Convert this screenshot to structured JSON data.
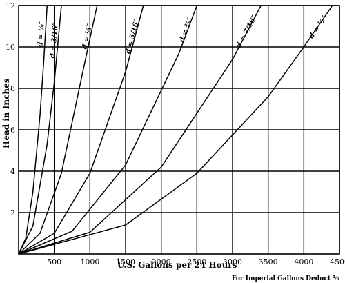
{
  "chart_data": {
    "type": "line",
    "title": "",
    "xlabel": "U.S. Gallons per 24 Hours",
    "ylabel": "Head in Inches",
    "note": "For Imperial Gallons Deduct ⅙",
    "xlim": [
      0,
      4500
    ],
    "ylim": [
      0,
      12
    ],
    "x_ticks": [
      500,
      1000,
      1500,
      2000,
      2500,
      3000,
      3500,
      4000,
      4500
    ],
    "x_tick_labels": [
      "500",
      "1000",
      "1500",
      "2000",
      "2500",
      "3000",
      "3500",
      "4000",
      "4500"
    ],
    "y_ticks": [
      2,
      4,
      6,
      8,
      10,
      12
    ],
    "y_tick_labels": [
      "2",
      "4",
      "6",
      "8",
      "10",
      "12"
    ],
    "grid": true,
    "series": [
      {
        "name": "d = ⅛″",
        "x": [
          0,
          100,
          200,
          300,
          350,
          400
        ],
        "y": [
          0,
          0.75,
          3.0,
          6.7,
          9.2,
          12.0
        ]
      },
      {
        "name": "d = 3/16″",
        "x": [
          0,
          200,
          400,
          500,
          600
        ],
        "y": [
          0,
          1.35,
          5.3,
          8.3,
          12.0
        ]
      },
      {
        "name": "d = ¼″",
        "x": [
          0,
          300,
          600,
          900,
          1100
        ],
        "y": [
          0,
          1.0,
          3.9,
          8.8,
          12.0
        ]
      },
      {
        "name": "d = 5/16″",
        "x": [
          0,
          500,
          1000,
          1500,
          1750
        ],
        "y": [
          0,
          1.0,
          3.9,
          8.8,
          12.0
        ]
      },
      {
        "name": "d = ⅜″",
        "x": [
          0,
          750,
          1500,
          2250,
          2500
        ],
        "y": [
          0,
          1.1,
          4.3,
          9.7,
          12.0
        ]
      },
      {
        "name": "d = 7/16″",
        "x": [
          0,
          1000,
          2000,
          3000,
          3400
        ],
        "y": [
          0,
          1.05,
          4.2,
          9.4,
          12.0
        ]
      },
      {
        "name": "d = ½″",
        "x": [
          0,
          1500,
          2500,
          3500,
          4000,
          4400
        ],
        "y": [
          0,
          1.4,
          3.9,
          7.6,
          10.0,
          12.0
        ]
      }
    ]
  }
}
